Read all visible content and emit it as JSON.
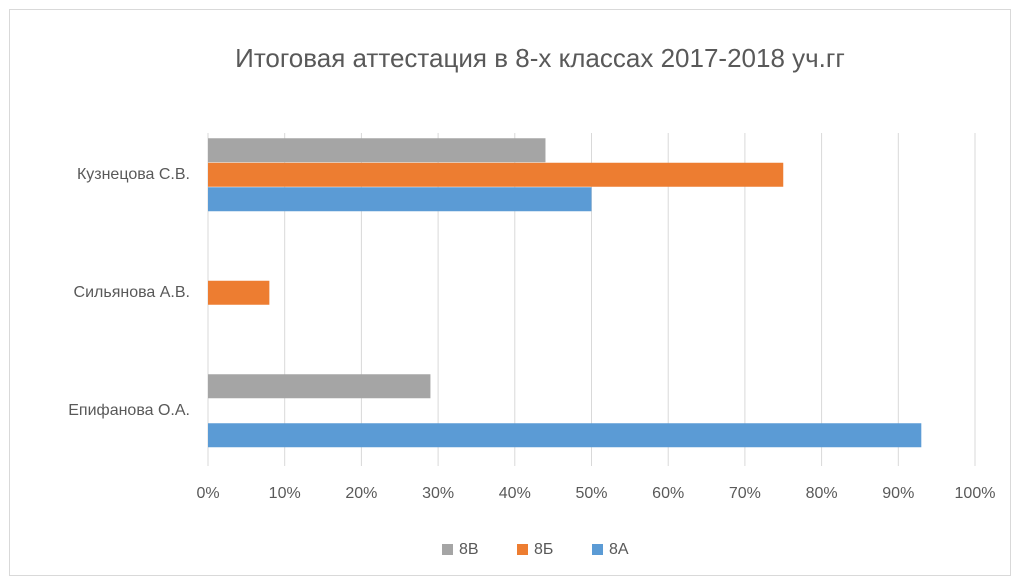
{
  "chart_data": {
    "type": "bar",
    "orientation": "horizontal",
    "title": "Итоговая аттестация в 8-х классах 2017-2018 уч.гг",
    "categories": [
      "Епифанова О.А.",
      "Сильянова А.В.",
      "Кузнецова С.В."
    ],
    "series": [
      {
        "name": "8А",
        "color": "#5b9bd5",
        "values": [
          93,
          0,
          50
        ]
      },
      {
        "name": "8Б",
        "color": "#ed7d31",
        "values": [
          0,
          8,
          75
        ]
      },
      {
        "name": "8В",
        "color": "#a5a5a5",
        "values": [
          29,
          0,
          44
        ]
      }
    ],
    "xlim": [
      0,
      100
    ],
    "xticks": [
      {
        "value": 0,
        "label": "0%"
      },
      {
        "value": 10,
        "label": "10%"
      },
      {
        "value": 20,
        "label": "20%"
      },
      {
        "value": 30,
        "label": "30%"
      },
      {
        "value": 40,
        "label": "40%"
      },
      {
        "value": 50,
        "label": "50%"
      },
      {
        "value": 60,
        "label": "60%"
      },
      {
        "value": 70,
        "label": "70%"
      },
      {
        "value": 80,
        "label": "80%"
      },
      {
        "value": 90,
        "label": "90%"
      },
      {
        "value": 100,
        "label": "100%"
      }
    ],
    "grid": true,
    "legend": "bottom"
  }
}
